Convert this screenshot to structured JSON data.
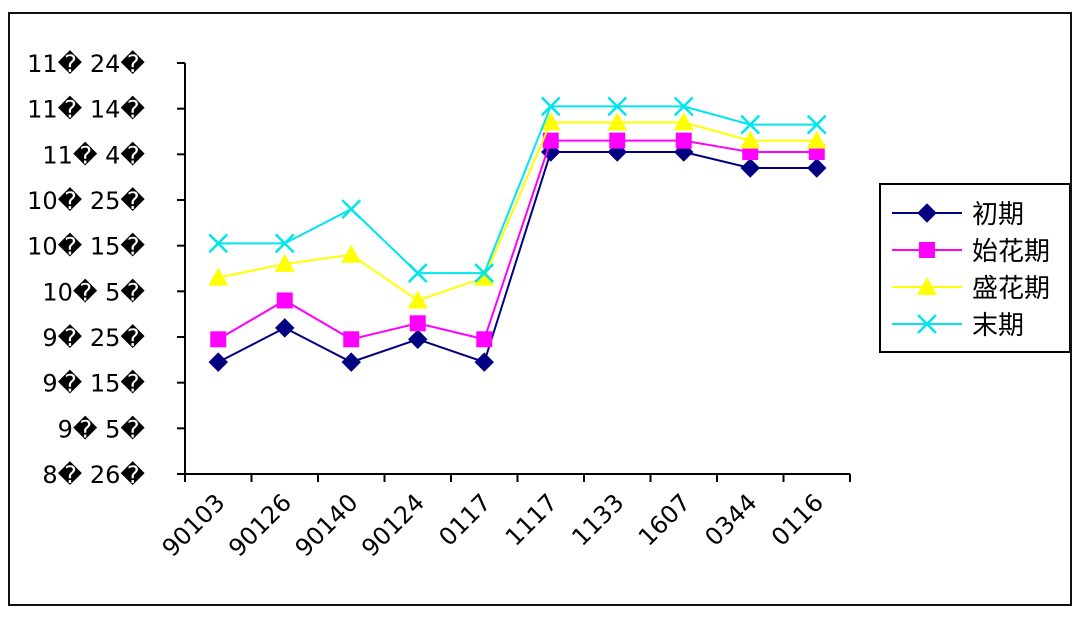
{
  "chart_data": {
    "type": "line",
    "categories": [
      "90103",
      "90126",
      "90140",
      "90124",
      "0117",
      "1117",
      "1133",
      "1607",
      "0344",
      "0116"
    ],
    "y_tick_labels": [
      "8� 26�",
      "9� 5�",
      "9� 15�",
      "9� 25�",
      "10� 5�",
      "10� 15�",
      "10� 25�",
      "11� 4�",
      "11� 14�",
      "11� 24�"
    ],
    "ylim": [
      0,
      9
    ],
    "series": [
      {
        "name": "初期",
        "marker": "diamond",
        "color": "#000080",
        "values": [
          2.45,
          3.2,
          2.45,
          2.95,
          2.45,
          7.05,
          7.05,
          7.05,
          6.7,
          6.7
        ]
      },
      {
        "name": "始花期",
        "marker": "square",
        "color": "#ff00ff",
        "values": [
          2.95,
          3.8,
          2.95,
          3.3,
          2.95,
          7.3,
          7.3,
          7.3,
          7.05,
          7.05
        ]
      },
      {
        "name": "盛花期",
        "marker": "triangle",
        "color": "#ffff00",
        "values": [
          4.3,
          4.6,
          4.8,
          3.8,
          4.3,
          7.7,
          7.7,
          7.7,
          7.3,
          7.3
        ]
      },
      {
        "name": "末期",
        "marker": "x",
        "color": "#00e5ee",
        "values": [
          5.05,
          5.05,
          5.8,
          4.4,
          4.4,
          8.05,
          8.05,
          8.05,
          7.65,
          7.65
        ]
      }
    ],
    "legend_position": "right",
    "grid": false
  }
}
